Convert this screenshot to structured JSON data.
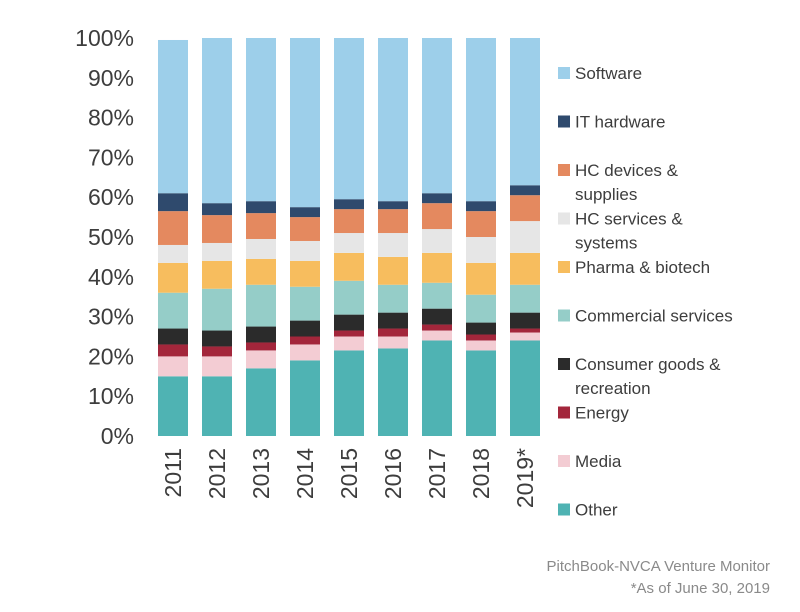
{
  "chart_data": {
    "type": "bar",
    "stacked": true,
    "percent": true,
    "categories": [
      "2011",
      "2012",
      "2013",
      "2014",
      "2015",
      "2016",
      "2017",
      "2018",
      "2019*"
    ],
    "yticks": [
      "0%",
      "10%",
      "20%",
      "30%",
      "40%",
      "50%",
      "60%",
      "70%",
      "80%",
      "90%",
      "100%"
    ],
    "ylim": [
      0,
      100
    ],
    "legend_placement": "right",
    "series": [
      {
        "name": "Other",
        "color": "#4fb3b3",
        "values": [
          15,
          15,
          17,
          19,
          21.5,
          22,
          24,
          21.5,
          24
        ]
      },
      {
        "name": "Media",
        "color": "#f3ccd3",
        "values": [
          5,
          5,
          4.5,
          4,
          3.5,
          3,
          2.5,
          2.5,
          2
        ]
      },
      {
        "name": "Energy",
        "color": "#a3263b",
        "values": [
          3,
          2.5,
          2,
          2,
          1.5,
          2,
          1.5,
          1.5,
          1
        ]
      },
      {
        "name": "Consumer goods & recreation",
        "color": "#2b2b2b",
        "values": [
          4,
          4,
          4,
          4,
          4,
          4,
          4,
          3,
          4
        ]
      },
      {
        "name": "Commercial services",
        "color": "#95cdc8",
        "values": [
          9,
          10.5,
          10.5,
          8.5,
          8.5,
          7,
          6.5,
          7,
          7
        ]
      },
      {
        "name": "Pharma & biotech",
        "color": "#f7bd5e",
        "values": [
          7.5,
          7,
          6.5,
          6.5,
          7,
          7,
          7.5,
          8,
          8
        ]
      },
      {
        "name": "HC services & systems",
        "color": "#e6e6e6",
        "values": [
          4.5,
          4.5,
          5,
          5,
          5,
          6,
          6,
          6.5,
          8
        ]
      },
      {
        "name": "HC devices & supplies",
        "color": "#e4895f",
        "values": [
          8.5,
          7,
          6.5,
          6,
          6,
          6,
          6.5,
          6.5,
          6.5
        ]
      },
      {
        "name": "IT hardware",
        "color": "#2f4a6d",
        "values": [
          4.5,
          3,
          3,
          2.5,
          2.5,
          2,
          2.5,
          2.5,
          2.5
        ]
      },
      {
        "name": "Software",
        "color": "#9dcfea",
        "values": [
          38.5,
          41.5,
          41,
          42.5,
          40.5,
          41,
          39,
          41,
          37
        ]
      }
    ],
    "legend_order": [
      {
        "name": "Software",
        "lines": [
          "Software"
        ]
      },
      {
        "name": "IT hardware",
        "lines": [
          "IT hardware"
        ]
      },
      {
        "name": "HC devices & supplies",
        "lines": [
          "HC devices &",
          "supplies"
        ]
      },
      {
        "name": "HC services & systems",
        "lines": [
          "HC services &",
          "systems"
        ]
      },
      {
        "name": "Pharma & biotech",
        "lines": [
          "Pharma & biotech"
        ]
      },
      {
        "name": "Commercial services",
        "lines": [
          "Commercial services"
        ]
      },
      {
        "name": "Consumer goods & recreation",
        "lines": [
          "Consumer goods &",
          "recreation"
        ]
      },
      {
        "name": "Energy",
        "lines": [
          "Energy"
        ]
      },
      {
        "name": "Media",
        "lines": [
          "Media"
        ]
      },
      {
        "name": "Other",
        "lines": [
          "Other"
        ]
      }
    ]
  },
  "source": {
    "line1": "PitchBook-NVCA Venture Monitor",
    "line2": "*As of June 30, 2019"
  }
}
